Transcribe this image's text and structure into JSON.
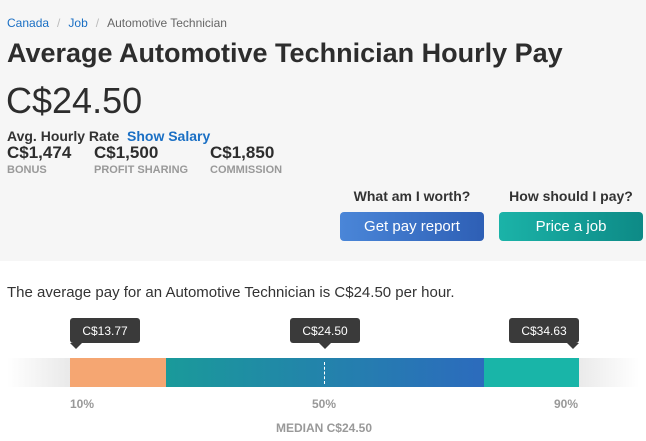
{
  "breadcrumb": {
    "items": [
      "Canada",
      "Job",
      "Automotive Technician"
    ]
  },
  "page_title": "Average Automotive Technician Hourly Pay",
  "average_pay": "C$24.50",
  "rate_label": "Avg. Hourly Rate",
  "show_salary_label": "Show Salary",
  "extras": [
    {
      "value": "C$1,474",
      "label": "BONUS"
    },
    {
      "value": "C$1,500",
      "label": "PROFIT SHARING"
    },
    {
      "value": "C$1,850",
      "label": "COMMISSION"
    }
  ],
  "cta": [
    {
      "question": "What am I worth?",
      "button": "Get pay report"
    },
    {
      "question": "How should I pay?",
      "button": "Price a job"
    }
  ],
  "description": "The average pay for an Automotive Technician is C$24.50 per hour.",
  "range": {
    "p10_value": "C$13.77",
    "median_value": "C$24.50",
    "p90_value": "C$34.63",
    "p10_label": "10%",
    "median_pct_label": "50%",
    "p90_label": "90%",
    "median_caption": "MEDIAN C$24.50",
    "colors": {
      "low": "#f5a672",
      "mid_start": "#1a9a9a",
      "mid_end": "#2c6bbd",
      "high": "#19b5a8"
    }
  }
}
